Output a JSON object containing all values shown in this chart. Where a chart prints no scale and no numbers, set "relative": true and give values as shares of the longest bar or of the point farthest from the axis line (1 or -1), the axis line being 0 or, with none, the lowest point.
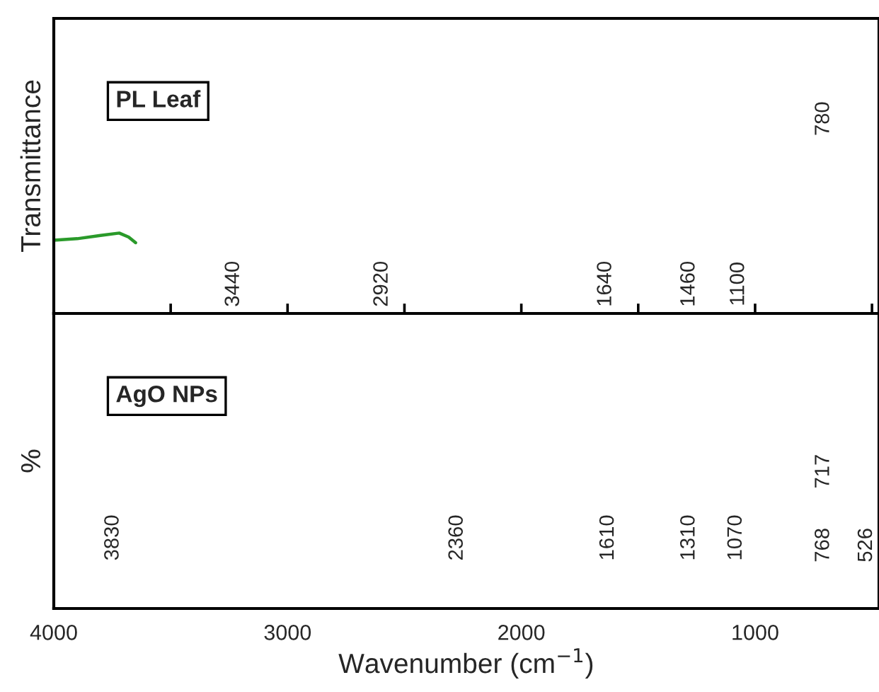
{
  "chart_data": [
    {
      "type": "line",
      "ylabel": "Transmittance",
      "xlabel": "Wavenumber (cm$^{−1}$)",
      "relative": true,
      "xlim": [
        4000,
        470
      ],
      "xticks": [
        4000,
        {
          "value": 3500,
          "label": null
        },
        3000,
        {
          "value": 2500,
          "label": null
        },
        2000,
        {
          "value": 1500,
          "label": null
        },
        1000,
        {
          "value": 500,
          "label": null
        }
      ],
      "tick_labels": "x",
      "series": [
        {
          "color": "#2a9a2a",
          "x": [
            4000,
            3900,
            3800,
            3720,
            3680,
            3650
          ],
          "values": [
            0.91,
            0.93,
            0.97,
            1,
            0.95,
            0.88
          ]
        }
      ],
      "annotations": [
        "PL Leaf",
        "3440",
        "2920",
        "1640",
        "1460",
        "1100",
        "780"
      ]
    },
    {
      "type": "other",
      "ylabel": "%",
      "annotations": [
        "AgO NPs",
        "3830",
        "2360",
        "1610",
        "1310",
        "1070",
        "717",
        "768",
        "526"
      ]
    }
  ]
}
